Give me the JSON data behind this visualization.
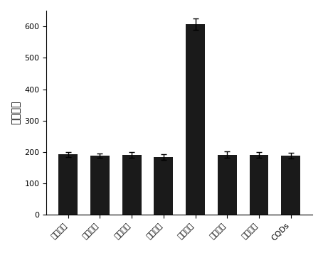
{
  "categories": [
    "葡萄沙星",
    "培氟沙星",
    "氧氟沙星",
    "依诺沙星",
    "环丙沙星",
    "洛美沙星",
    "加替沙星",
    "CQDs"
  ],
  "values": [
    193,
    188,
    191,
    185,
    608,
    192,
    191,
    188
  ],
  "errors": [
    8,
    7,
    8,
    9,
    18,
    10,
    10,
    9
  ],
  "bar_color": "#1a1a1a",
  "error_color": "#000000",
  "ylabel": "荧光强度",
  "ylim": [
    0,
    650
  ],
  "yticks": [
    0,
    100,
    200,
    300,
    400,
    500,
    600
  ],
  "background_color": "#ffffff",
  "ylabel_fontsize": 10,
  "tick_fontsize": 8,
  "xlabel_rotation": 45
}
